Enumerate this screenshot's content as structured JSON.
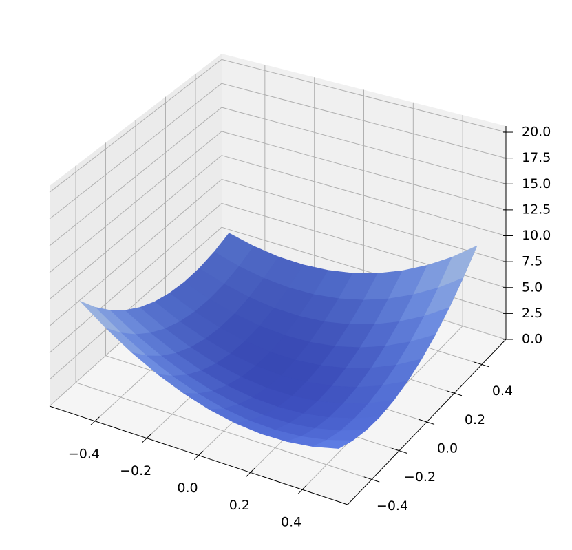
{
  "chart_data": {
    "type": "surface",
    "x": [
      -0.5,
      -0.4,
      -0.3,
      -0.2,
      -0.1,
      0,
      0.1,
      0.2,
      0.3,
      0.4,
      0.5
    ],
    "y": [
      -0.5,
      -0.4,
      -0.3,
      -0.2,
      -0.1,
      0,
      0.1,
      0.2,
      0.3,
      0.4,
      0.5
    ],
    "z": [
      [
        9.5,
        7.73,
        6.22,
        4.97,
        3.98,
        3.25,
        2.78,
        2.57,
        2.62,
        2.93,
        3.5
      ],
      [
        7.73,
        6.08,
        4.69,
        3.56,
        2.69,
        2.08,
        1.73,
        1.64,
        1.81,
        2.24,
        2.93
      ],
      [
        6.22,
        4.69,
        3.42,
        2.41,
        1.66,
        1.17,
        0.94,
        0.97,
        1.26,
        1.81,
        2.62
      ],
      [
        4.97,
        3.56,
        2.41,
        1.52,
        0.89,
        0.52,
        0.41,
        0.56,
        0.97,
        1.64,
        2.57
      ],
      [
        3.98,
        2.69,
        1.66,
        0.89,
        0.38,
        0.13,
        0.14,
        0.41,
        0.94,
        1.73,
        2.78
      ],
      [
        3.25,
        2.08,
        1.17,
        0.52,
        0.13,
        0,
        0.13,
        0.52,
        1.17,
        2.08,
        3.25
      ],
      [
        2.78,
        1.73,
        0.94,
        0.41,
        0.14,
        0.13,
        0.38,
        0.89,
        1.66,
        2.69,
        3.98
      ],
      [
        2.57,
        1.64,
        0.97,
        0.56,
        0.41,
        0.52,
        0.89,
        1.52,
        2.41,
        3.56,
        4.97
      ],
      [
        2.62,
        1.81,
        1.26,
        0.97,
        0.94,
        1.17,
        1.66,
        2.41,
        3.42,
        4.69,
        6.22
      ],
      [
        2.93,
        2.24,
        1.81,
        1.64,
        1.73,
        2.08,
        2.69,
        3.56,
        4.69,
        6.08,
        7.73
      ],
      [
        3.5,
        2.93,
        2.62,
        2.57,
        2.78,
        3.25,
        3.98,
        4.97,
        6.22,
        7.73,
        9.5
      ]
    ],
    "colormap": "coolwarm",
    "xlim": [
      -0.575,
      0.575
    ],
    "ylim": [
      -0.575,
      0.575
    ],
    "zlim": [
      0,
      20.6
    ],
    "xticks": [
      {
        "value": -0.4,
        "label": "−0.4"
      },
      {
        "value": -0.2,
        "label": "−0.2"
      },
      {
        "value": 0,
        "label": "0.0"
      },
      {
        "value": 0.2,
        "label": "0.2"
      },
      {
        "value": 0.4,
        "label": "0.4"
      }
    ],
    "yticks": [
      {
        "value": -0.4,
        "label": "−0.4"
      },
      {
        "value": -0.2,
        "label": "−0.2"
      },
      {
        "value": 0,
        "label": "0.0"
      },
      {
        "value": 0.2,
        "label": "0.2"
      },
      {
        "value": 0.4,
        "label": "0.4"
      }
    ],
    "zticks": [
      {
        "value": 0,
        "label": "0.0"
      },
      {
        "value": 2.5,
        "label": "2.5"
      },
      {
        "value": 5,
        "label": "5.0"
      },
      {
        "value": 7.5,
        "label": "7.5"
      },
      {
        "value": 10,
        "label": "10.0"
      },
      {
        "value": 12.5,
        "label": "12.5"
      },
      {
        "value": 15,
        "label": "15.0"
      },
      {
        "value": 17.5,
        "label": "17.5"
      },
      {
        "value": 20,
        "label": "20.0"
      }
    ],
    "grid": true
  }
}
